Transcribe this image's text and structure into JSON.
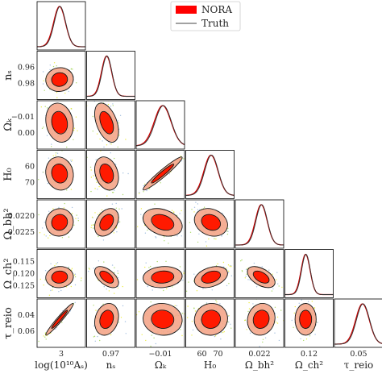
{
  "chart_data": {
    "type": "scatter",
    "subtype": "corner-plot",
    "legend": {
      "placement": "top-center",
      "entries": [
        {
          "name": "NORA",
          "color": "#ff0000",
          "symbol": "filled-rectangle"
        },
        {
          "name": "Truth",
          "color": "#444444",
          "symbol": "line"
        }
      ]
    },
    "parameters": [
      {
        "key": "As",
        "label": "log(10¹⁰Aₛ)",
        "ticks": [
          "3"
        ],
        "range": [
          2.98,
          3.12
        ],
        "mean": 3.045,
        "sigma": 0.017
      },
      {
        "key": "ns",
        "label": "nₛ",
        "ticks": [
          "0.96",
          "0.97",
          "0.98"
        ],
        "range": [
          0.95,
          0.99
        ],
        "mean": 0.9665,
        "sigma": 0.0042
      },
      {
        "key": "Ok",
        "label": "Ωₖ",
        "ticks": [
          "−0.01",
          "0.00",
          "−0.01"
        ],
        "range": [
          -0.022,
          0.01
        ],
        "mean": -0.0045,
        "sigma": 0.0055
      },
      {
        "key": "H0",
        "label": "H₀",
        "ticks": [
          "60",
          "70"
        ],
        "range": [
          52,
          76
        ],
        "mean": 64.5,
        "sigma": 3.5
      },
      {
        "key": "Obh2",
        "label": "Ω_bh²",
        "ticks": [
          "0.022",
          "0.0220",
          "0.0225"
        ],
        "range": [
          0.0216,
          0.023
        ],
        "mean": 0.02235,
        "sigma": 0.00017
      },
      {
        "key": "Och2",
        "label": "Ω_ch²",
        "ticks": [
          "0.12",
          "0.115",
          "0.120",
          "0.125"
        ],
        "range": [
          0.114,
          0.128
        ],
        "mean": 0.12,
        "sigma": 0.0013
      },
      {
        "key": "tau",
        "label": "τ_reio",
        "ticks": [
          "0.05",
          "0.04",
          "0.06"
        ],
        "range": [
          0.025,
          0.075
        ],
        "mean": 0.054,
        "sigma": 0.007
      }
    ],
    "y_axis_labels": [
      {
        "row": 1,
        "label": "nₛ",
        "ticks": [
          "0.96",
          "0.98"
        ]
      },
      {
        "row": 2,
        "label": "Ωₖ",
        "ticks": [
          "−0.01",
          "0.00"
        ]
      },
      {
        "row": 3,
        "label": "H₀",
        "ticks": [
          "60",
          "70"
        ]
      },
      {
        "row": 4,
        "label": "Ω_bh²",
        "ticks": [
          "0.0220",
          "0.0225"
        ]
      },
      {
        "row": 5,
        "label": "Ω_ch²",
        "ticks": [
          "0.115",
          "0.120",
          "0.125"
        ]
      },
      {
        "row": 6,
        "label": "τ_reio",
        "ticks": [
          "0.04",
          "0.06"
        ]
      }
    ],
    "x_axis_labels": [
      {
        "col": 0,
        "label": "log(10¹⁰Aₛ)",
        "ticks": [
          "3"
        ]
      },
      {
        "col": 1,
        "label": "nₛ",
        "ticks": [
          "0.97"
        ]
      },
      {
        "col": 2,
        "label": "Ωₖ",
        "ticks": [
          "−0.01"
        ]
      },
      {
        "col": 3,
        "label": "H₀",
        "ticks": [
          "60",
          "70"
        ]
      },
      {
        "col": 4,
        "label": "Ω_bh²",
        "ticks": [
          "0.022"
        ]
      },
      {
        "col": 5,
        "label": "Ω_ch²",
        "ticks": [
          "0.12"
        ]
      },
      {
        "col": 6,
        "label": "τ_reio",
        "ticks": [
          "0.05"
        ]
      }
    ],
    "correlations": [
      {
        "pair": [
          "ns",
          "As"
        ],
        "rho": 0.05
      },
      {
        "pair": [
          "Ok",
          "As"
        ],
        "rho": -0.15
      },
      {
        "pair": [
          "Ok",
          "ns"
        ],
        "rho": -0.45
      },
      {
        "pair": [
          "H0",
          "As"
        ],
        "rho": -0.1
      },
      {
        "pair": [
          "H0",
          "ns"
        ],
        "rho": -0.25
      },
      {
        "pair": [
          "H0",
          "Ok"
        ],
        "rho": 0.96
      },
      {
        "pair": [
          "Obh2",
          "As"
        ],
        "rho": 0.05
      },
      {
        "pair": [
          "Obh2",
          "ns"
        ],
        "rho": 0.35
      },
      {
        "pair": [
          "Obh2",
          "Ok"
        ],
        "rho": -0.3
      },
      {
        "pair": [
          "Obh2",
          "H0"
        ],
        "rho": -0.2
      },
      {
        "pair": [
          "Och2",
          "As"
        ],
        "rho": 0.05
      },
      {
        "pair": [
          "Och2",
          "ns"
        ],
        "rho": -0.55
      },
      {
        "pair": [
          "Och2",
          "Ok"
        ],
        "rho": 0.1
      },
      {
        "pair": [
          "Och2",
          "H0"
        ],
        "rho": 0.35
      },
      {
        "pair": [
          "Och2",
          "Obh2"
        ],
        "rho": -0.5
      },
      {
        "pair": [
          "tau",
          "As"
        ],
        "rho": 0.97
      },
      {
        "pair": [
          "tau",
          "ns"
        ],
        "rho": 0.2
      },
      {
        "pair": [
          "tau",
          "Ok"
        ],
        "rho": -0.05
      },
      {
        "pair": [
          "tau",
          "H0"
        ],
        "rho": 0.05
      },
      {
        "pair": [
          "tau",
          "Obh2"
        ],
        "rho": 0.1
      },
      {
        "pair": [
          "tau",
          "Och2"
        ],
        "rho": 0.0
      }
    ],
    "contour_levels_sigma": [
      1,
      2
    ],
    "colors": {
      "nora_fill_inner": "#ff1a00",
      "nora_fill_outer": "#f4a58a",
      "truth_line": "#333333",
      "nora_hist_line": "#cc0000",
      "samples": [
        "#e8e81a",
        "#9ad24a",
        "#8fb0d8"
      ]
    }
  }
}
